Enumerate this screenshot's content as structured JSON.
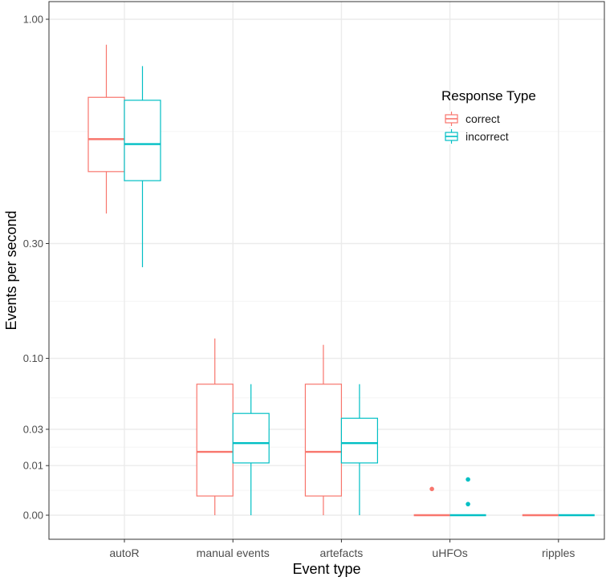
{
  "colors": {
    "correct": "#F8766D",
    "incorrect": "#00BFC4",
    "grid_major": "#ebebeb",
    "grid_minor": "#f5f5f5",
    "panel_border": "#333333",
    "tick": "#333333"
  },
  "chart_data": {
    "type": "boxplot",
    "xlabel": "Event type",
    "ylabel": "Events per second",
    "y_scale": "sqrt",
    "ylim": [
      0,
      1.0
    ],
    "y_ticks": [
      {
        "value": 0,
        "label": "0.00"
      },
      {
        "value": 0.01,
        "label": "0.01"
      },
      {
        "value": 0.03,
        "label": "0.03"
      },
      {
        "value": 0.1,
        "label": "0.10"
      },
      {
        "value": 0.3,
        "label": "0.30"
      },
      {
        "value": 1.0,
        "label": "1.00"
      }
    ],
    "y_minor_ticks": [
      0.0025,
      0.0188,
      0.056,
      0.1861,
      0.5986
    ],
    "categories": [
      "autoR",
      "manual events",
      "artefacts",
      "uHFOs",
      "ripples"
    ],
    "legend": {
      "title": "Response Type",
      "position": "top-right",
      "entries": [
        {
          "key": "correct",
          "label": "correct"
        },
        {
          "key": "incorrect",
          "label": "incorrect"
        }
      ]
    },
    "series": [
      {
        "name": "correct",
        "boxes": [
          {
            "category": "autoR",
            "min": 0.37,
            "q1": 0.48,
            "median": 0.575,
            "q3": 0.71,
            "max": 0.9,
            "outliers": []
          },
          {
            "category": "manual events",
            "min": 0.0,
            "q1": 0.0015,
            "median": 0.0163,
            "q3": 0.0698,
            "max": 0.127,
            "outliers": []
          },
          {
            "category": "artefacts",
            "min": 0.0,
            "q1": 0.0015,
            "median": 0.0163,
            "q3": 0.0698,
            "max": 0.118,
            "outliers": []
          },
          {
            "category": "uHFOs",
            "min": 0.0,
            "q1": 0.0,
            "median": 0.0,
            "q3": 0.0,
            "max": 0.0,
            "outliers": [
              0.0028
            ]
          },
          {
            "category": "ripples",
            "min": 0.0,
            "q1": 0.0,
            "median": 0.0,
            "q3": 0.0,
            "max": 0.0,
            "outliers": []
          }
        ]
      },
      {
        "name": "incorrect",
        "boxes": [
          {
            "category": "autoR",
            "min": 0.25,
            "q1": 0.455,
            "median": 0.56,
            "q3": 0.7,
            "max": 0.82,
            "outliers": []
          },
          {
            "category": "manual events",
            "min": 0.0,
            "q1": 0.0111,
            "median": 0.0211,
            "q3": 0.0421,
            "max": 0.0698,
            "outliers": []
          },
          {
            "category": "artefacts",
            "min": 0.0,
            "q1": 0.0111,
            "median": 0.0211,
            "q3": 0.0382,
            "max": 0.0698,
            "outliers": []
          },
          {
            "category": "uHFOs",
            "min": 0.0,
            "q1": 0.0,
            "median": 0.0,
            "q3": 0.0,
            "max": 0.0,
            "outliers": [
              0.0005,
              0.0052
            ]
          },
          {
            "category": "ripples",
            "min": 0.0,
            "q1": 0.0,
            "median": 0.0,
            "q3": 0.0,
            "max": 0.0,
            "outliers": []
          }
        ]
      }
    ]
  }
}
